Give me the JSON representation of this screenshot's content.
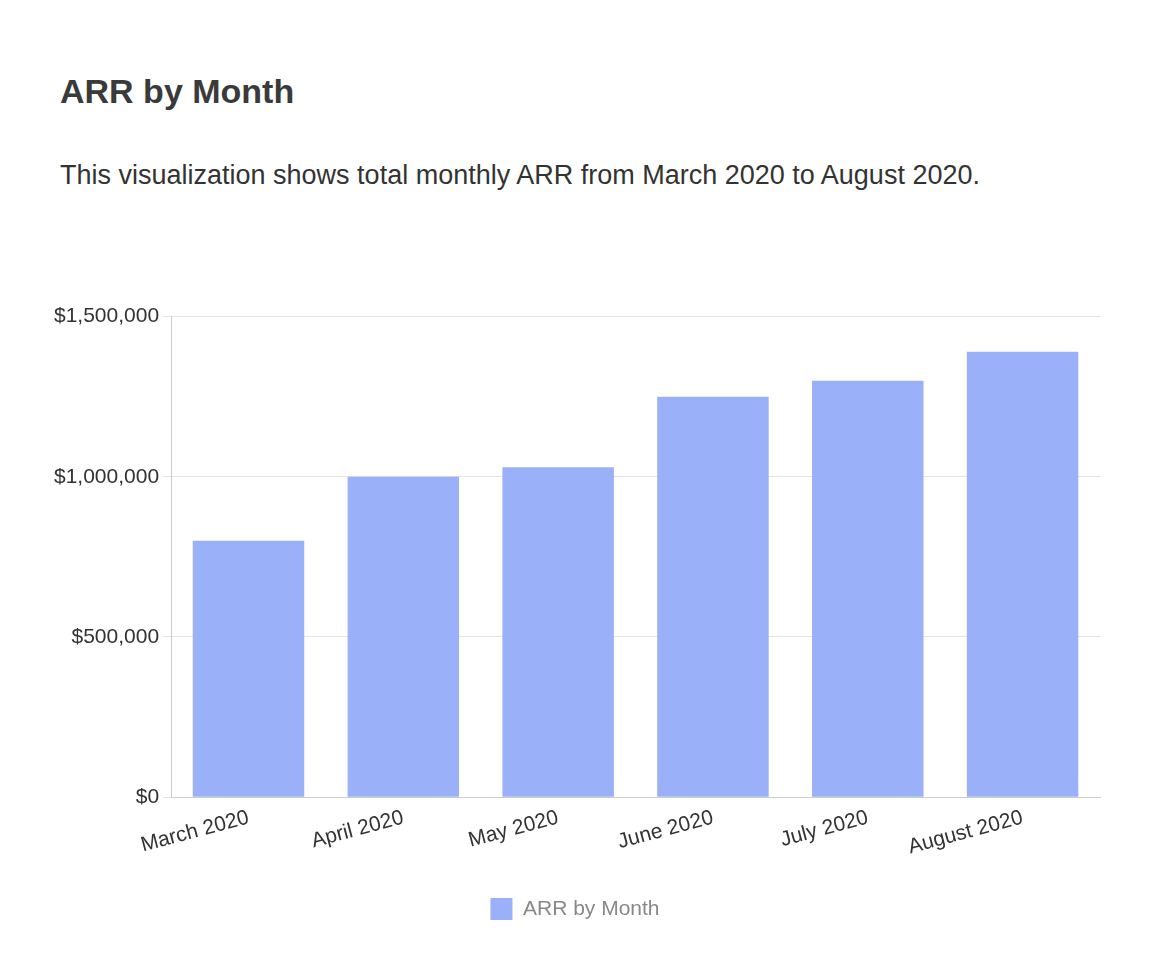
{
  "chart_data": {
    "type": "bar",
    "title": "ARR by Month",
    "subtitle": "This visualization shows total monthly ARR from March 2020 to August 2020.",
    "categories": [
      "March 2020",
      "April 2020",
      "May 2020",
      "June 2020",
      "July 2020",
      "August 2020"
    ],
    "series": [
      {
        "name": "ARR by Month",
        "color": "#9ab0f8",
        "values": [
          800000,
          1000000,
          1030000,
          1250000,
          1300000,
          1390000
        ]
      }
    ],
    "ylim": [
      0,
      1500000
    ],
    "yticks": [
      {
        "value": 0,
        "label": "$0"
      },
      {
        "value": 500000,
        "label": "$500,000"
      },
      {
        "value": 1000000,
        "label": "$1,000,000"
      },
      {
        "value": 1500000,
        "label": "$1,500,000"
      }
    ],
    "grid": true,
    "legend": "bottom"
  }
}
